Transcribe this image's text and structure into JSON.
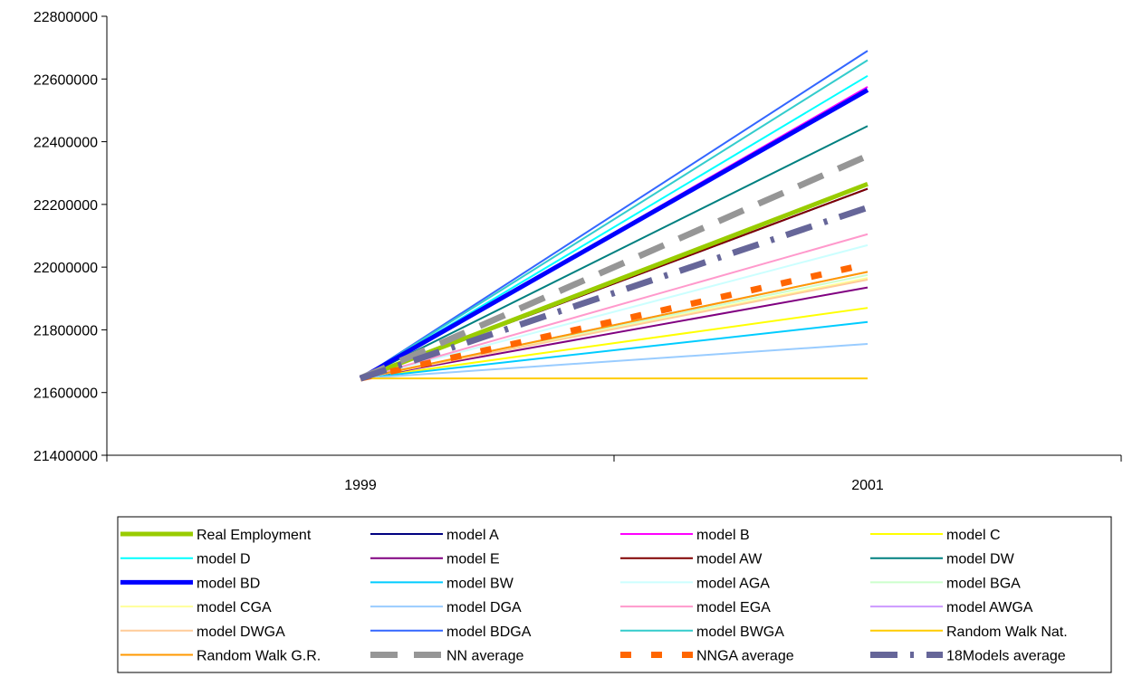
{
  "chart_data": {
    "type": "line",
    "title": "",
    "xlabel": "",
    "ylabel": "",
    "categories": [
      "1999",
      "2001"
    ],
    "ylim": [
      21400000,
      22800000
    ],
    "yticks": [
      21400000,
      21600000,
      21800000,
      22000000,
      22200000,
      22400000,
      22600000,
      22800000
    ],
    "grid": false,
    "legend_position": "bottom",
    "series": [
      {
        "name": "Real Employment",
        "values": [
          21645000,
          22265000
        ],
        "color": "#99CC00",
        "style": "solid",
        "weight": "heavy"
      },
      {
        "name": "model A",
        "values": [
          21645000,
          22250000
        ],
        "color": "#000080",
        "style": "solid",
        "weight": "normal"
      },
      {
        "name": "model B",
        "values": [
          21645000,
          22575000
        ],
        "color": "#FF00FF",
        "style": "solid",
        "weight": "normal"
      },
      {
        "name": "model C",
        "values": [
          21645000,
          21870000
        ],
        "color": "#FFFF00",
        "style": "solid",
        "weight": "normal"
      },
      {
        "name": "model D",
        "values": [
          21645000,
          22610000
        ],
        "color": "#00FFFF",
        "style": "solid",
        "weight": "normal"
      },
      {
        "name": "model E",
        "values": [
          21645000,
          21935000
        ],
        "color": "#800080",
        "style": "solid",
        "weight": "normal"
      },
      {
        "name": "model AW",
        "values": [
          21645000,
          22250000
        ],
        "color": "#800000",
        "style": "solid",
        "weight": "normal"
      },
      {
        "name": "model DW",
        "values": [
          21645000,
          22450000
        ],
        "color": "#008080",
        "style": "solid",
        "weight": "normal"
      },
      {
        "name": "model BD",
        "values": [
          21645000,
          22565000
        ],
        "color": "#0000FF",
        "style": "solid",
        "weight": "heavy"
      },
      {
        "name": "model BW",
        "values": [
          21645000,
          21825000
        ],
        "color": "#00CCFF",
        "style": "solid",
        "weight": "normal"
      },
      {
        "name": "model AGA",
        "values": [
          21645000,
          22070000
        ],
        "color": "#CCFFFF",
        "style": "solid",
        "weight": "normal"
      },
      {
        "name": "model BGA",
        "values": [
          21645000,
          21975000
        ],
        "color": "#CCFFCC",
        "style": "solid",
        "weight": "normal"
      },
      {
        "name": "model CGA",
        "values": [
          21645000,
          21965000
        ],
        "color": "#FFFF99",
        "style": "solid",
        "weight": "normal"
      },
      {
        "name": "model DGA",
        "values": [
          21645000,
          21755000
        ],
        "color": "#99CCFF",
        "style": "solid",
        "weight": "normal"
      },
      {
        "name": "model EGA",
        "values": [
          21645000,
          22105000
        ],
        "color": "#FF99CC",
        "style": "solid",
        "weight": "normal"
      },
      {
        "name": "model AWGA",
        "values": [
          21645000,
          21985000
        ],
        "color": "#CC99FF",
        "style": "solid",
        "weight": "normal"
      },
      {
        "name": "model DWGA",
        "values": [
          21645000,
          21960000
        ],
        "color": "#FFCC99",
        "style": "solid",
        "weight": "normal"
      },
      {
        "name": "model BDGA",
        "values": [
          21645000,
          22690000
        ],
        "color": "#3366FF",
        "style": "solid",
        "weight": "normal"
      },
      {
        "name": "model BWGA",
        "values": [
          21645000,
          22660000
        ],
        "color": "#33CCCC",
        "style": "solid",
        "weight": "normal"
      },
      {
        "name": "Random Walk Nat.",
        "values": [
          21645000,
          21645000
        ],
        "color": "#FFCC00",
        "style": "solid",
        "weight": "normal"
      },
      {
        "name": "Random Walk G.R.",
        "values": [
          21645000,
          21985000
        ],
        "color": "#FF9900",
        "style": "solid",
        "weight": "normal"
      },
      {
        "name": "NN average",
        "values": [
          21645000,
          22355000
        ],
        "color": "#969696",
        "style": "dashed",
        "weight": "heavy"
      },
      {
        "name": "NNGA average",
        "values": [
          21645000,
          22010000
        ],
        "color": "#FF6600",
        "style": "dotted",
        "weight": "heavy"
      },
      {
        "name": "18Models average",
        "values": [
          21645000,
          22190000
        ],
        "color": "#666699",
        "style": "dashdot",
        "weight": "heavy"
      }
    ]
  }
}
